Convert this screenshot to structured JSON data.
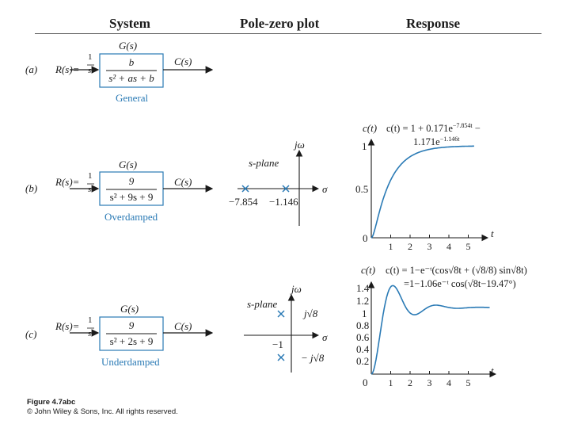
{
  "headers": {
    "system": "System",
    "pole_zero": "Pole-zero plot",
    "response": "Response"
  },
  "rows": [
    {
      "tag": "(a)",
      "input": "R(s)=",
      "input_frac": [
        "1",
        "s"
      ],
      "g_label": "G(s)",
      "tf_num": "b",
      "tf_den": "s² + as + b",
      "output": "C(s)",
      "kind": "General"
    },
    {
      "tag": "(b)",
      "input": "R(s)=",
      "input_frac": [
        "1",
        "s"
      ],
      "g_label": "G(s)",
      "tf_num": "9",
      "tf_den": "s² + 9s + 9",
      "output": "C(s)",
      "kind": "Overdamped",
      "pz": {
        "axis_im": "jω",
        "axis_re": "σ",
        "plane": "s-plane",
        "pole1": "−7.854",
        "pole2": "−1.146"
      },
      "resp": {
        "ylabel": "c(t)",
        "eq1": "c(t) = 1 + 0.171e",
        "eq1_exp": "−7.854t",
        "eq1_tail": " −",
        "eq2": "1.171e",
        "eq2_exp": "−1.146t",
        "yticks": [
          "1",
          "0.5",
          "0"
        ],
        "xticks": [
          "1",
          "2",
          "3",
          "4",
          "5"
        ],
        "xlabel": "t"
      }
    },
    {
      "tag": "(c)",
      "input": "R(s)=",
      "input_frac": [
        "1",
        "s"
      ],
      "g_label": "G(s)",
      "tf_num": "9",
      "tf_den": "s² + 2s + 9",
      "output": "C(s)",
      "kind": "Underdamped",
      "pz": {
        "axis_im": "jω",
        "axis_re": "σ",
        "plane": "s-plane",
        "im_pos": "j√8",
        "im_neg": "− j√8",
        "re": "−1"
      },
      "resp": {
        "ylabel": "c(t)",
        "eq1": "c(t) = 1−e⁻ᵗ(cos√8t + (√8/8) sin√8t)",
        "eq2": "=1−1.06e⁻ᵗ cos(√8t−19.47°)",
        "yticks": [
          "1.4",
          "1.2",
          "1",
          "0.8",
          "0.6",
          "0.4",
          "0.2",
          "0"
        ],
        "xticks": [
          "1",
          "2",
          "3",
          "4",
          "5"
        ],
        "xlabel": "t"
      }
    }
  ],
  "caption": {
    "line1": "Figure 4.7abc",
    "line2": "© John Wiley & Sons, Inc. All rights reserved."
  },
  "colors": {
    "curve": "#2a7ab5",
    "pole": "#2a7ab5",
    "block_border": "#2a7ab5",
    "ink": "#1a1a1a"
  }
}
